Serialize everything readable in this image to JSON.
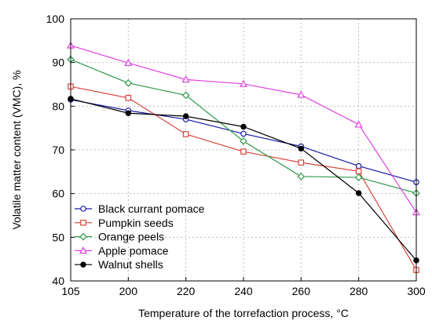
{
  "chart_data": {
    "type": "line",
    "xlabel": "Temperature of the torrefaction process, °C",
    "ylabel": "Volatile matter content (VMC), %",
    "categories": [
      "105",
      "200",
      "220",
      "240",
      "260",
      "280",
      "300"
    ],
    "ylim": [
      40,
      100
    ],
    "yticks": [
      40,
      50,
      60,
      70,
      80,
      90,
      100
    ],
    "grid": true,
    "legend_position": "bottom-left",
    "series": [
      {
        "name": "Black currant pomace",
        "color": "#1a1aa6",
        "marker": "circle-open",
        "values": [
          81.5,
          79.0,
          77.0,
          73.7,
          70.8,
          66.3,
          62.6
        ]
      },
      {
        "name": "Pumpkin seeds",
        "color": "#d9453a",
        "marker": "square-open",
        "values": [
          84.5,
          81.9,
          73.6,
          69.6,
          67.1,
          65.1,
          42.5
        ]
      },
      {
        "name": "Orange peels",
        "color": "#2e9a4b",
        "marker": "diamond-open",
        "values": [
          90.7,
          85.3,
          82.5,
          72.0,
          63.9,
          63.7,
          60.1
        ]
      },
      {
        "name": "Apple pomace",
        "color": "#e040e0",
        "marker": "triangle-open",
        "values": [
          93.9,
          89.9,
          86.1,
          85.1,
          82.6,
          75.8,
          55.7
        ]
      },
      {
        "name": "Walnut shells",
        "color": "#000000",
        "marker": "circle-filled",
        "values": [
          81.7,
          78.4,
          77.7,
          75.3,
          70.3,
          60.1,
          44.7
        ]
      }
    ]
  }
}
